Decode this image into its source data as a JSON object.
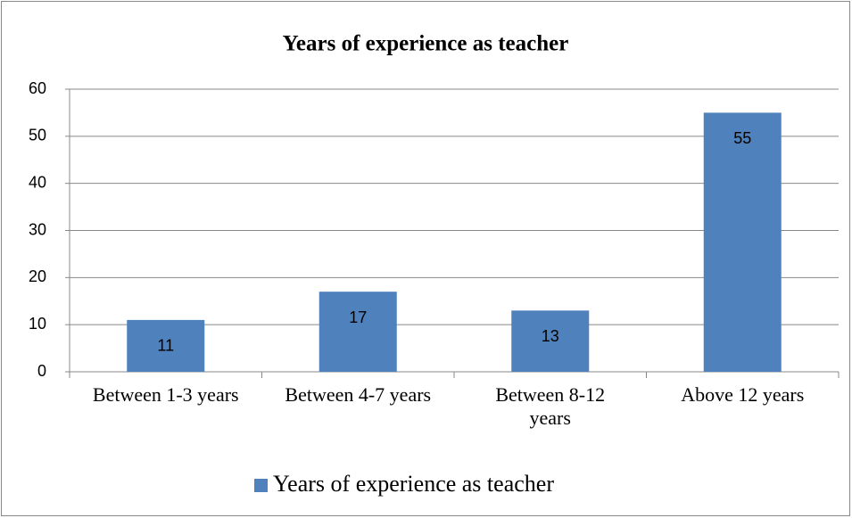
{
  "chart_data": {
    "type": "bar",
    "title": "Years of experience as teacher",
    "categories": [
      "Between 1-3 years",
      "Between 4-7 years",
      "Between 8-12 years",
      "Above 12 years"
    ],
    "series": [
      {
        "name": "Years of experience as teacher",
        "color": "#4f81bd",
        "values": [
          11,
          17,
          13,
          55
        ]
      }
    ],
    "ylim": [
      0,
      60
    ],
    "yticks": [
      0,
      10,
      20,
      30,
      40,
      50,
      60
    ],
    "grid": true,
    "legend": "bottom"
  }
}
